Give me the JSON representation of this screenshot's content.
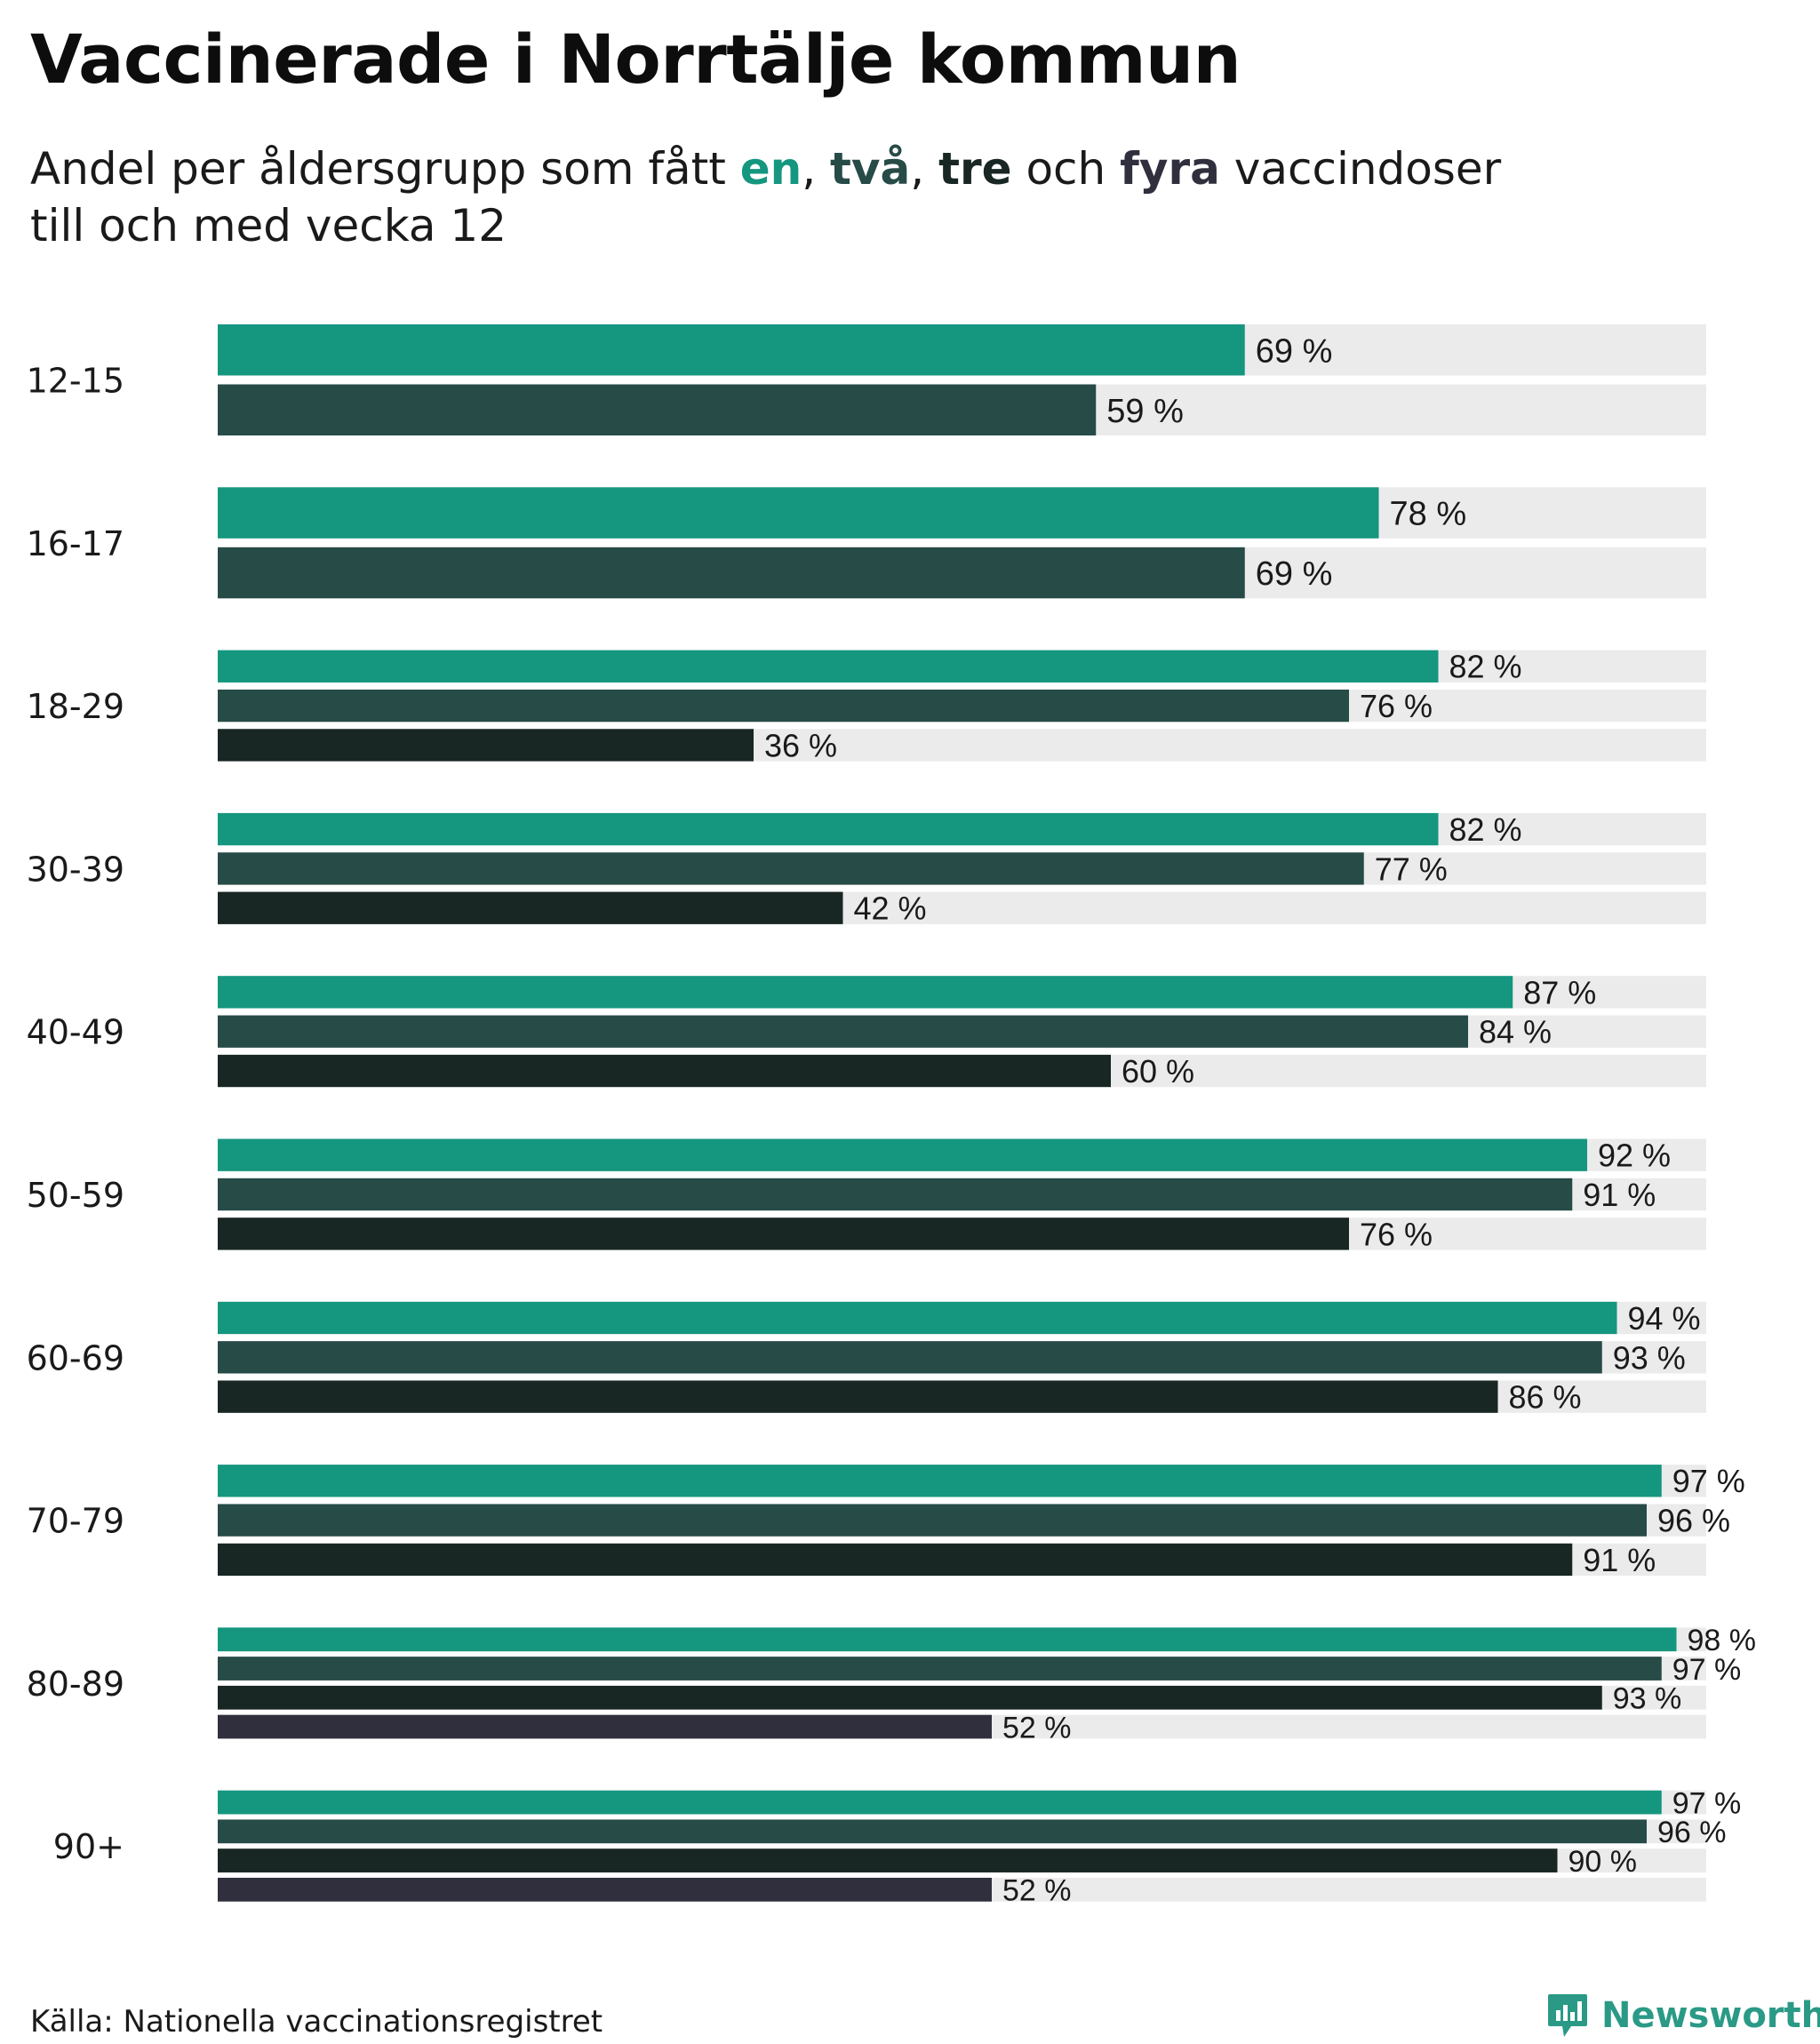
{
  "title": "Vaccinerade i Norrtälje kommun",
  "subtitle": {
    "part1": "Andel per åldersgrupp som fått ",
    "k1": "en",
    "sep1": ", ",
    "k2": "två",
    "sep2": ", ",
    "k3": "tre",
    "part2": " och ",
    "k4": "fyra",
    "part3": " vaccindoser",
    "line2": "till och med vecka 12"
  },
  "colors": {
    "dose1": "#15967f",
    "dose2": "#274b47",
    "dose3": "#182624",
    "dose4": "#302f3d",
    "track": "#ebebeb",
    "brand": "#2a9a86"
  },
  "chart_data": {
    "type": "bar",
    "orientation": "horizontal",
    "title": "Vaccinerade i Norrtälje kommun",
    "xlim": [
      0,
      100
    ],
    "unit": "%",
    "value_suffix": " %",
    "categories": [
      "12-15",
      "16-17",
      "18-29",
      "30-39",
      "40-49",
      "50-59",
      "60-69",
      "70-79",
      "80-89",
      "90+"
    ],
    "series": [
      {
        "name": "en",
        "values": [
          69,
          78,
          82,
          82,
          87,
          92,
          94,
          97,
          98,
          97
        ]
      },
      {
        "name": "två",
        "values": [
          59,
          69,
          76,
          77,
          84,
          91,
          93,
          96,
          97,
          96
        ]
      },
      {
        "name": "tre",
        "values": [
          null,
          null,
          36,
          42,
          60,
          76,
          86,
          91,
          93,
          90
        ]
      },
      {
        "name": "fyra",
        "values": [
          null,
          null,
          null,
          null,
          null,
          null,
          null,
          null,
          52,
          52
        ]
      }
    ]
  },
  "footer": {
    "source": "Källa: Nationella vaccinationsregistret",
    "brand": "Newsworthy"
  }
}
